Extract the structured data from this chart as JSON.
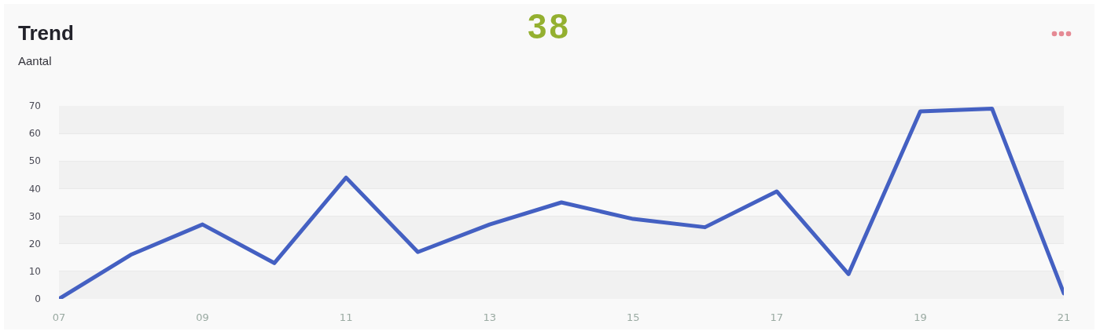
{
  "chart_data": {
    "type": "line",
    "title": "Trend",
    "subtitle": "Aantal",
    "annotations": [
      "38"
    ],
    "x": [
      7,
      8,
      9,
      10,
      11,
      12,
      13,
      14,
      15,
      16,
      17,
      18,
      19,
      20,
      21
    ],
    "series": [
      {
        "color": "#4460c2",
        "values": [
          0,
          16,
          27,
          13,
          44,
          17,
          27,
          35,
          29,
          26,
          39,
          9,
          68,
          69,
          2
        ]
      }
    ],
    "xlim": [
      7,
      21
    ],
    "xticks": [
      {
        "value": 7,
        "label": "07"
      },
      {
        "value": 9,
        "label": "09"
      },
      {
        "value": 11,
        "label": "11"
      },
      {
        "value": 13,
        "label": "13"
      },
      {
        "value": 15,
        "label": "15"
      },
      {
        "value": 17,
        "label": "17"
      },
      {
        "value": 19,
        "label": "19"
      },
      {
        "value": 21,
        "label": "21"
      }
    ],
    "ylim": [
      0,
      70
    ],
    "yticks": [
      0,
      10,
      20,
      30,
      40,
      50,
      60,
      70
    ],
    "grid": "y",
    "line_style": "solid"
  }
}
